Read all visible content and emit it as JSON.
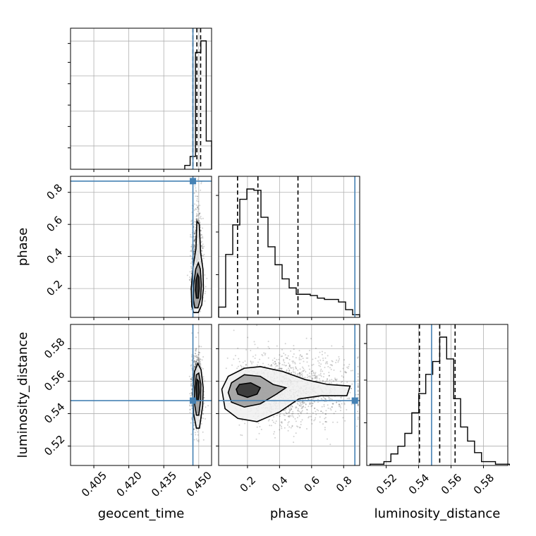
{
  "chart_data": {
    "type": "corner",
    "parameters": [
      "geocent_time",
      "phase",
      "luminosity_distance"
    ],
    "truths": {
      "geocent_time": 0.4475,
      "phase": 0.87,
      "luminosity_distance": 0.548
    },
    "colors": {
      "truth": "#4682b4",
      "hist": "#000000",
      "grid": "#b0b0b0"
    },
    "diagonal": [
      {
        "param": "geocent_time",
        "xlim": [
          0.395,
          0.4555
        ],
        "bins": [
          {
            "x0": 0.444,
            "x1": 0.4463,
            "h": 0.03
          },
          {
            "x0": 0.4463,
            "x1": 0.4486,
            "h": 0.1
          },
          {
            "x0": 0.4486,
            "x1": 0.4509,
            "h": 0.91
          },
          {
            "x0": 0.4509,
            "x1": 0.4532,
            "h": 1.0
          },
          {
            "x0": 0.4532,
            "x1": 0.4555,
            "h": 0.22
          }
        ],
        "quantiles": [
          0.4475,
          0.4492,
          0.4508
        ]
      },
      {
        "param": "phase",
        "xlim": [
          0.02,
          0.9
        ],
        "bins": [
          {
            "x0": 0.02,
            "x1": 0.064,
            "h": 0.08
          },
          {
            "x0": 0.064,
            "x1": 0.108,
            "h": 0.49
          },
          {
            "x0": 0.108,
            "x1": 0.152,
            "h": 0.72
          },
          {
            "x0": 0.152,
            "x1": 0.196,
            "h": 0.92
          },
          {
            "x0": 0.196,
            "x1": 0.24,
            "h": 1.0
          },
          {
            "x0": 0.24,
            "x1": 0.284,
            "h": 0.99
          },
          {
            "x0": 0.284,
            "x1": 0.328,
            "h": 0.78
          },
          {
            "x0": 0.328,
            "x1": 0.372,
            "h": 0.55
          },
          {
            "x0": 0.372,
            "x1": 0.416,
            "h": 0.41
          },
          {
            "x0": 0.416,
            "x1": 0.46,
            "h": 0.3
          },
          {
            "x0": 0.46,
            "x1": 0.504,
            "h": 0.23
          },
          {
            "x0": 0.504,
            "x1": 0.548,
            "h": 0.18
          },
          {
            "x0": 0.548,
            "x1": 0.592,
            "h": 0.18
          },
          {
            "x0": 0.592,
            "x1": 0.636,
            "h": 0.17
          },
          {
            "x0": 0.636,
            "x1": 0.68,
            "h": 0.15
          },
          {
            "x0": 0.68,
            "x1": 0.724,
            "h": 0.14
          },
          {
            "x0": 0.724,
            "x1": 0.768,
            "h": 0.14
          },
          {
            "x0": 0.768,
            "x1": 0.812,
            "h": 0.12
          },
          {
            "x0": 0.812,
            "x1": 0.856,
            "h": 0.06
          },
          {
            "x0": 0.856,
            "x1": 0.9,
            "h": 0.02
          }
        ],
        "quantiles": [
          0.138,
          0.265,
          0.515
        ]
      },
      {
        "param": "luminosity_distance",
        "xlim": [
          0.508,
          0.595
        ],
        "bins": [
          {
            "x0": 0.51,
            "x1": 0.5143,
            "h": 0.01
          },
          {
            "x0": 0.5143,
            "x1": 0.5186,
            "h": 0.01
          },
          {
            "x0": 0.5186,
            "x1": 0.5229,
            "h": 0.03
          },
          {
            "x0": 0.5229,
            "x1": 0.5272,
            "h": 0.09
          },
          {
            "x0": 0.5272,
            "x1": 0.5315,
            "h": 0.15
          },
          {
            "x0": 0.5315,
            "x1": 0.5358,
            "h": 0.25
          },
          {
            "x0": 0.5358,
            "x1": 0.5401,
            "h": 0.41
          },
          {
            "x0": 0.5401,
            "x1": 0.5444,
            "h": 0.56
          },
          {
            "x0": 0.5444,
            "x1": 0.5487,
            "h": 0.71
          },
          {
            "x0": 0.5487,
            "x1": 0.553,
            "h": 0.81
          },
          {
            "x0": 0.553,
            "x1": 0.5573,
            "h": 1.0
          },
          {
            "x0": 0.5573,
            "x1": 0.5616,
            "h": 0.83
          },
          {
            "x0": 0.5616,
            "x1": 0.5659,
            "h": 0.52
          },
          {
            "x0": 0.5659,
            "x1": 0.5702,
            "h": 0.3
          },
          {
            "x0": 0.5702,
            "x1": 0.5745,
            "h": 0.19
          },
          {
            "x0": 0.5745,
            "x1": 0.5788,
            "h": 0.1
          },
          {
            "x0": 0.5788,
            "x1": 0.5831,
            "h": 0.03
          },
          {
            "x0": 0.5831,
            "x1": 0.5874,
            "h": 0.03
          },
          {
            "x0": 0.5874,
            "x1": 0.5917,
            "h": 0.01
          },
          {
            "x0": 0.5917,
            "x1": 0.596,
            "h": 0.01
          }
        ],
        "quantiles": [
          0.5405,
          0.553,
          0.5625
        ]
      }
    ],
    "axes": {
      "geocent_time": {
        "lim": [
          0.395,
          0.4555
        ],
        "ticks": [
          0.405,
          0.42,
          0.435,
          0.45
        ],
        "tick_labels": [
          "0.405",
          "0.420",
          "0.435",
          "0.450"
        ]
      },
      "phase": {
        "lim": [
          0.02,
          0.9
        ],
        "ticks": [
          0.2,
          0.4,
          0.6,
          0.8
        ],
        "tick_labels": [
          "0.2",
          "0.4",
          "0.6",
          "0.8"
        ]
      },
      "luminosity_distance": {
        "lim": [
          0.508,
          0.595
        ],
        "ticks": [
          0.52,
          0.54,
          0.56,
          0.58
        ],
        "tick_labels": [
          "0.52",
          "0.54",
          "0.56",
          "0.58"
        ]
      }
    },
    "xlabels": [
      "geocent_time",
      "phase",
      "luminosity_distance"
    ],
    "ylabels": [
      "",
      "phase",
      "luminosity_distance"
    ],
    "contours": {
      "phase_vs_geocent_time": [
        [
          [
            0.4478,
            0.05
          ],
          [
            0.4498,
            0.05
          ],
          [
            0.4513,
            0.1
          ],
          [
            0.452,
            0.2
          ],
          [
            0.4518,
            0.32
          ],
          [
            0.4508,
            0.42
          ],
          [
            0.4502,
            0.6
          ],
          [
            0.4492,
            0.62
          ],
          [
            0.4488,
            0.45
          ],
          [
            0.4475,
            0.33
          ],
          [
            0.4468,
            0.2
          ],
          [
            0.447,
            0.09
          ]
        ],
        [
          [
            0.4483,
            0.08
          ],
          [
            0.4497,
            0.08
          ],
          [
            0.4508,
            0.14
          ],
          [
            0.4511,
            0.22
          ],
          [
            0.4507,
            0.32
          ],
          [
            0.4498,
            0.36
          ],
          [
            0.4487,
            0.32
          ],
          [
            0.4478,
            0.22
          ],
          [
            0.4477,
            0.13
          ]
        ],
        [
          [
            0.449,
            0.14
          ],
          [
            0.4498,
            0.14
          ],
          [
            0.4502,
            0.2
          ],
          [
            0.4501,
            0.27
          ],
          [
            0.4495,
            0.29
          ],
          [
            0.4488,
            0.25
          ],
          [
            0.4486,
            0.19
          ]
        ]
      ],
      "luminosity_distance_vs_geocent_time": [
        [
          [
            0.449,
            0.531
          ],
          [
            0.4503,
            0.531
          ],
          [
            0.4517,
            0.545
          ],
          [
            0.4519,
            0.556
          ],
          [
            0.451,
            0.567
          ],
          [
            0.4496,
            0.571
          ],
          [
            0.4482,
            0.566
          ],
          [
            0.4474,
            0.553
          ],
          [
            0.4478,
            0.54
          ]
        ],
        [
          [
            0.449,
            0.539
          ],
          [
            0.45,
            0.539
          ],
          [
            0.4508,
            0.548
          ],
          [
            0.4509,
            0.558
          ],
          [
            0.45,
            0.565
          ],
          [
            0.449,
            0.564
          ],
          [
            0.4482,
            0.556
          ],
          [
            0.4482,
            0.546
          ]
        ],
        [
          [
            0.4492,
            0.548
          ],
          [
            0.4498,
            0.548
          ],
          [
            0.4502,
            0.553
          ],
          [
            0.45,
            0.56
          ],
          [
            0.4493,
            0.561
          ],
          [
            0.4488,
            0.556
          ]
        ]
      ],
      "luminosity_distance_vs_phase": [
        [
          [
            0.06,
            0.543
          ],
          [
            0.14,
            0.537
          ],
          [
            0.26,
            0.535
          ],
          [
            0.4,
            0.541
          ],
          [
            0.52,
            0.549
          ],
          [
            0.66,
            0.551
          ],
          [
            0.82,
            0.551
          ],
          [
            0.84,
            0.557
          ],
          [
            0.7,
            0.558
          ],
          [
            0.56,
            0.561
          ],
          [
            0.42,
            0.566
          ],
          [
            0.28,
            0.569
          ],
          [
            0.18,
            0.568
          ],
          [
            0.08,
            0.563
          ],
          [
            0.04,
            0.555
          ]
        ],
        [
          [
            0.1,
            0.547
          ],
          [
            0.18,
            0.544
          ],
          [
            0.28,
            0.546
          ],
          [
            0.38,
            0.552
          ],
          [
            0.44,
            0.556
          ],
          [
            0.36,
            0.558
          ],
          [
            0.28,
            0.563
          ],
          [
            0.18,
            0.564
          ],
          [
            0.1,
            0.559
          ],
          [
            0.08,
            0.553
          ]
        ],
        [
          [
            0.14,
            0.552
          ],
          [
            0.2,
            0.55
          ],
          [
            0.26,
            0.552
          ],
          [
            0.28,
            0.556
          ],
          [
            0.22,
            0.559
          ],
          [
            0.15,
            0.558
          ],
          [
            0.13,
            0.555
          ]
        ]
      ]
    }
  }
}
